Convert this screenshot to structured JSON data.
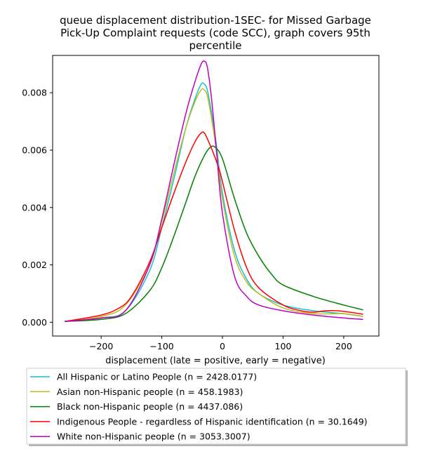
{
  "chart_data": {
    "type": "line",
    "title": "queue displacement distribution-1SEC-  for Missed Garbage Pick-Up Complaint  requests (code SCC), graph covers 95th percentile",
    "title_lines": [
      "queue displacement distribution-1SEC-  for Missed Garbage",
      "Pick-Up Complaint  requests (code SCC), graph covers 95th",
      "percentile"
    ],
    "xlabel": "displacement (late = positive, early = negative)",
    "ylabel": "",
    "xlim": [
      -280,
      258
    ],
    "ylim": [
      -0.00048,
      0.0093
    ],
    "xticks": [
      -200,
      -100,
      0,
      100,
      200
    ],
    "xtick_labels": [
      "−200",
      "−100",
      "0",
      "100",
      "200"
    ],
    "yticks": [
      0,
      0.002,
      0.004,
      0.006,
      0.008
    ],
    "ytick_labels": [
      "0.000",
      "0.002",
      "0.004",
      "0.006",
      "0.008"
    ],
    "grid": false,
    "legend_position": "below plot",
    "series": [
      {
        "name": "All Hispanic or Latino People (n = 2428.0177)",
        "color": "#17becf",
        "x": [
          -260,
          -200,
          -160,
          -120,
          -100,
          -80,
          -60,
          -45,
          -35,
          -30,
          -25,
          -18,
          -10,
          0,
          20,
          40,
          60,
          100,
          150,
          200,
          232
        ],
        "y": [
          3e-05,
          0.00015,
          0.0004,
          0.0018,
          0.0033,
          0.005,
          0.0068,
          0.0078,
          0.0083,
          0.0083,
          0.0081,
          0.0073,
          0.0062,
          0.0045,
          0.0025,
          0.0015,
          0.001,
          0.0006,
          0.0004,
          0.0003,
          0.0002
        ]
      },
      {
        "name": "Asian non-Hispanic people (n = 458.1983)",
        "color": "#bcbd22",
        "x": [
          -260,
          -200,
          -160,
          -120,
          -100,
          -80,
          -60,
          -45,
          -35,
          -30,
          -25,
          -18,
          -10,
          0,
          20,
          40,
          60,
          100,
          150,
          200,
          232
        ],
        "y": [
          3e-05,
          0.0002,
          0.0006,
          0.002,
          0.0035,
          0.0052,
          0.0068,
          0.0077,
          0.0081,
          0.0081,
          0.0079,
          0.0071,
          0.006,
          0.0043,
          0.0023,
          0.0014,
          0.001,
          0.0005,
          0.0003,
          0.0003,
          0.0002
        ]
      },
      {
        "name": "Black non-Hispanic people (n = 4437.086)",
        "color": "#008000",
        "x": [
          -260,
          -200,
          -160,
          -120,
          -100,
          -80,
          -60,
          -45,
          -30,
          -20,
          -12,
          0,
          20,
          40,
          60,
          80,
          100,
          150,
          200,
          232
        ],
        "y": [
          3e-05,
          0.0001,
          0.0003,
          0.0011,
          0.0019,
          0.003,
          0.0042,
          0.0051,
          0.0058,
          0.0061,
          0.0061,
          0.0057,
          0.0043,
          0.0031,
          0.0023,
          0.0017,
          0.0013,
          0.0009,
          0.0006,
          0.00043
        ]
      },
      {
        "name": "Indigenous People - regardless of Hispanic identification (n = 30.1649)",
        "color": "#ff0000",
        "x": [
          -260,
          -200,
          -170,
          -150,
          -120,
          -100,
          -80,
          -60,
          -45,
          -35,
          -30,
          -25,
          -15,
          -5,
          0,
          20,
          40,
          60,
          100,
          130,
          150,
          170,
          190,
          210,
          232
        ],
        "y": [
          3e-05,
          0.00025,
          0.0005,
          0.0009,
          0.0021,
          0.0033,
          0.0045,
          0.0056,
          0.0063,
          0.0066,
          0.0066,
          0.0064,
          0.0059,
          0.0053,
          0.0049,
          0.0032,
          0.0019,
          0.0012,
          0.0006,
          0.0004,
          0.00035,
          0.0004,
          0.0004,
          0.00035,
          0.00028
        ]
      },
      {
        "name": "White non-Hispanic people (n = 3053.3007)",
        "color": "#bf00bf",
        "x": [
          -260,
          -200,
          -160,
          -120,
          -100,
          -80,
          -60,
          -45,
          -35,
          -30,
          -25,
          -18,
          -10,
          0,
          20,
          40,
          60,
          100,
          150,
          200,
          232
        ],
        "y": [
          3e-05,
          0.00015,
          0.0004,
          0.002,
          0.0036,
          0.0055,
          0.0073,
          0.0084,
          0.009,
          0.0091,
          0.0089,
          0.0078,
          0.006,
          0.0038,
          0.0016,
          0.0009,
          0.0006,
          0.0004,
          0.00025,
          0.00015,
          0.0001
        ]
      }
    ]
  }
}
